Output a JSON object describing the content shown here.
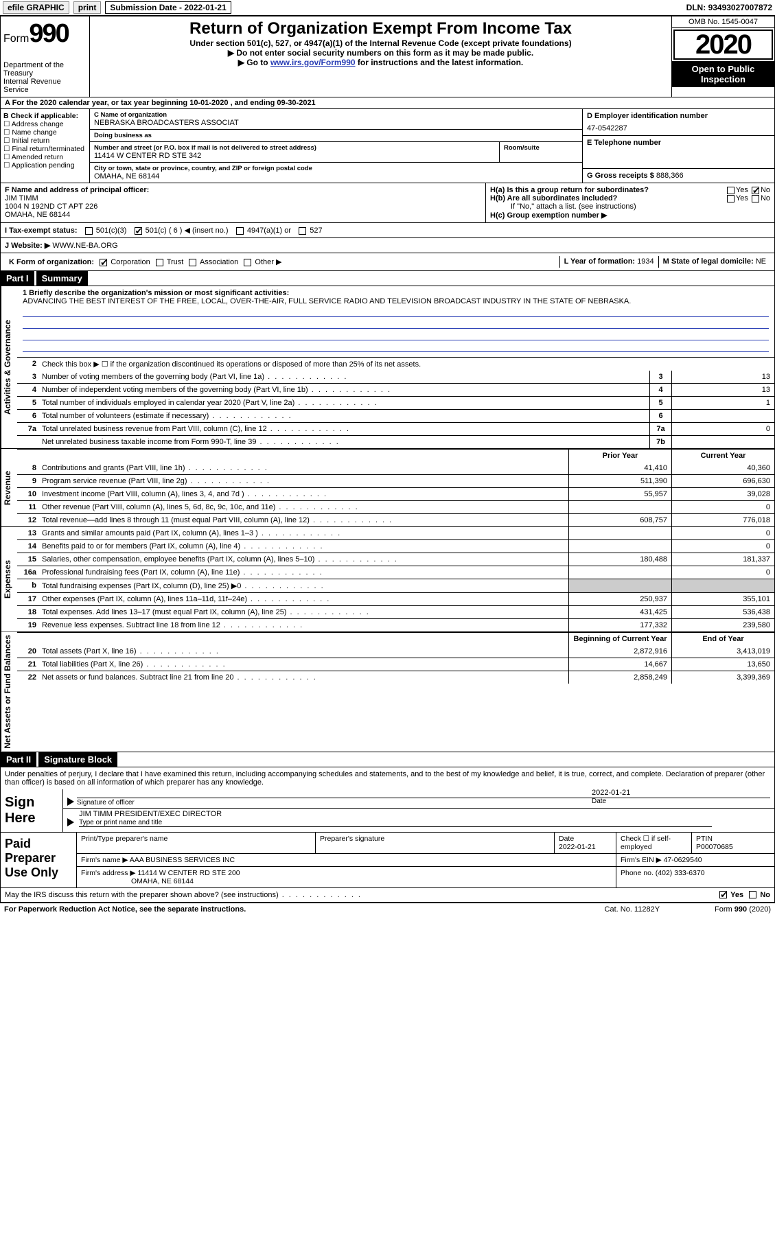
{
  "topbar": {
    "efile": "efile GRAPHIC",
    "print": "print",
    "submission_label": "Submission Date - ",
    "submission_date": "2022-01-21",
    "dln_label": "DLN: ",
    "dln": "93493027007872"
  },
  "header": {
    "form_word": "Form",
    "form_num": "990",
    "dept": "Department of the Treasury",
    "irs": "Internal Revenue Service",
    "title": "Return of Organization Exempt From Income Tax",
    "subtitle": "Under section 501(c), 527, or 4947(a)(1) of the Internal Revenue Code (except private foundations)",
    "note1": "▶ Do not enter social security numbers on this form as it may be made public.",
    "note2_pre": "▶ Go to ",
    "note2_link": "www.irs.gov/Form990",
    "note2_post": " for instructions and the latest information.",
    "omb": "OMB No. 1545-0047",
    "year": "2020",
    "open1": "Open to Public",
    "open2": "Inspection"
  },
  "row_a": {
    "prefix": "A",
    "text": "For the 2020 calendar year, or tax year beginning ",
    "begin": "10-01-2020",
    "mid": "  , and ending ",
    "end": "09-30-2021"
  },
  "section_b": {
    "header": "B Check if applicable:",
    "items": [
      "Address change",
      "Name change",
      "Initial return",
      "Final return/terminated",
      "Amended return",
      "Application pending"
    ]
  },
  "section_c": {
    "name_label": "C Name of organization",
    "name": "NEBRASKA BROADCASTERS ASSOCIAT",
    "dba_label": "Doing business as",
    "dba": "",
    "addr_label": "Number and street (or P.O. box if mail is not delivered to street address)",
    "room_label": "Room/suite",
    "addr": "11414 W CENTER RD STE 342",
    "city_label": "City or town, state or province, country, and ZIP or foreign postal code",
    "city": "OMAHA, NE  68144"
  },
  "section_d": {
    "label": "D Employer identification number",
    "value": "47-0542287"
  },
  "section_e": {
    "label": "E Telephone number",
    "value": ""
  },
  "section_g": {
    "label": "G Gross receipts $ ",
    "value": "888,366"
  },
  "section_f": {
    "label": "F Name and address of principal officer:",
    "name": "JIM TIMM",
    "addr1": "1004 N 192ND CT APT 226",
    "addr2": "OMAHA, NE  68144"
  },
  "section_h": {
    "ha": "H(a)  Is this a group return for subordinates?",
    "ha_yes": "Yes",
    "ha_no": "No",
    "hb": "H(b)  Are all subordinates included?",
    "hb_yes": "Yes",
    "hb_no": "No",
    "hb_note": "If \"No,\" attach a list. (see instructions)",
    "hc": "H(c)  Group exemption number ▶"
  },
  "row_i": {
    "label": "I    Tax-exempt status:",
    "opts": [
      "501(c)(3)",
      "501(c) ( 6 ) ◀ (insert no.)",
      "4947(a)(1) or",
      "527"
    ]
  },
  "row_j": {
    "label": "J   Website: ▶  ",
    "value": "WWW.NE-BA.ORG"
  },
  "row_k": {
    "label": "K Form of organization:",
    "opts": [
      "Corporation",
      "Trust",
      "Association",
      "Other ▶"
    ]
  },
  "row_l": {
    "label": "L Year of formation: ",
    "value": "1934"
  },
  "row_m": {
    "label": "M State of legal domicile: ",
    "value": "NE"
  },
  "part1": {
    "tab": "Part I",
    "title": "Summary",
    "mission_label": "1   Briefly describe the organization's mission or most significant activities:",
    "mission": "ADVANCING THE BEST INTEREST OF THE FREE, LOCAL, OVER-THE-AIR, FULL SERVICE RADIO AND TELEVISION BROADCAST INDUSTRY IN THE STATE OF NEBRASKA.",
    "line2": "Check this box ▶ ☐  if the organization discontinued its operations or disposed of more than 25% of its net assets."
  },
  "vtabs": {
    "gov": "Activities & Governance",
    "rev": "Revenue",
    "exp": "Expenses",
    "net": "Net Assets or Fund Balances"
  },
  "cols": {
    "prior": "Prior Year",
    "current": "Current Year",
    "begin": "Beginning of Current Year",
    "end": "End of Year"
  },
  "gov_lines": [
    {
      "n": "3",
      "d": "Number of voting members of the governing body (Part VI, line 1a)",
      "box": "3",
      "v": "13"
    },
    {
      "n": "4",
      "d": "Number of independent voting members of the governing body (Part VI, line 1b)",
      "box": "4",
      "v": "13"
    },
    {
      "n": "5",
      "d": "Total number of individuals employed in calendar year 2020 (Part V, line 2a)",
      "box": "5",
      "v": "1"
    },
    {
      "n": "6",
      "d": "Total number of volunteers (estimate if necessary)",
      "box": "6",
      "v": ""
    },
    {
      "n": "7a",
      "d": "Total unrelated business revenue from Part VIII, column (C), line 12",
      "box": "7a",
      "v": "0"
    },
    {
      "n": "",
      "d": "Net unrelated business taxable income from Form 990-T, line 39",
      "box": "7b",
      "v": ""
    }
  ],
  "rev_lines": [
    {
      "n": "8",
      "d": "Contributions and grants (Part VIII, line 1h)",
      "p": "41,410",
      "c": "40,360"
    },
    {
      "n": "9",
      "d": "Program service revenue (Part VIII, line 2g)",
      "p": "511,390",
      "c": "696,630"
    },
    {
      "n": "10",
      "d": "Investment income (Part VIII, column (A), lines 3, 4, and 7d )",
      "p": "55,957",
      "c": "39,028"
    },
    {
      "n": "11",
      "d": "Other revenue (Part VIII, column (A), lines 5, 6d, 8c, 9c, 10c, and 11e)",
      "p": "",
      "c": "0"
    },
    {
      "n": "12",
      "d": "Total revenue—add lines 8 through 11 (must equal Part VIII, column (A), line 12)",
      "p": "608,757",
      "c": "776,018"
    }
  ],
  "exp_lines": [
    {
      "n": "13",
      "d": "Grants and similar amounts paid (Part IX, column (A), lines 1–3 )",
      "p": "",
      "c": "0"
    },
    {
      "n": "14",
      "d": "Benefits paid to or for members (Part IX, column (A), line 4)",
      "p": "",
      "c": "0"
    },
    {
      "n": "15",
      "d": "Salaries, other compensation, employee benefits (Part IX, column (A), lines 5–10)",
      "p": "180,488",
      "c": "181,337"
    },
    {
      "n": "16a",
      "d": "Professional fundraising fees (Part IX, column (A), line 11e)",
      "p": "",
      "c": "0"
    },
    {
      "n": "b",
      "d": "Total fundraising expenses (Part IX, column (D), line 25) ▶0",
      "p": "SHADE",
      "c": "SHADE"
    },
    {
      "n": "17",
      "d": "Other expenses (Part IX, column (A), lines 11a–11d, 11f–24e)",
      "p": "250,937",
      "c": "355,101"
    },
    {
      "n": "18",
      "d": "Total expenses. Add lines 13–17 (must equal Part IX, column (A), line 25)",
      "p": "431,425",
      "c": "536,438"
    },
    {
      "n": "19",
      "d": "Revenue less expenses. Subtract line 18 from line 12",
      "p": "177,332",
      "c": "239,580"
    }
  ],
  "net_lines": [
    {
      "n": "20",
      "d": "Total assets (Part X, line 16)",
      "p": "2,872,916",
      "c": "3,413,019"
    },
    {
      "n": "21",
      "d": "Total liabilities (Part X, line 26)",
      "p": "14,667",
      "c": "13,650"
    },
    {
      "n": "22",
      "d": "Net assets or fund balances. Subtract line 21 from line 20",
      "p": "2,858,249",
      "c": "3,399,369"
    }
  ],
  "part2": {
    "tab": "Part II",
    "title": "Signature Block",
    "decl": "Under penalties of perjury, I declare that I have examined this return, including accompanying schedules and statements, and to the best of my knowledge and belief, it is true, correct, and complete. Declaration of preparer (other than officer) is based on all information of which preparer has any knowledge."
  },
  "sign": {
    "label": "Sign Here",
    "sig_label": "Signature of officer",
    "date_label": "Date",
    "date": "2022-01-21",
    "name": "JIM TIMM  PRESIDENT/EXEC DIRECTOR",
    "name_label": "Type or print name and title"
  },
  "paid": {
    "label": "Paid Preparer Use Only",
    "h1": "Print/Type preparer's name",
    "h2": "Preparer's signature",
    "h3": "Date",
    "h3v": "2022-01-21",
    "h4": "Check ☐ if self-employed",
    "h5": "PTIN",
    "h5v": "P00070685",
    "firm_label": "Firm's name    ▶ ",
    "firm": "AAA BUSINESS SERVICES INC",
    "ein_label": "Firm's EIN ▶ ",
    "ein": "47-0629540",
    "addr_label": "Firm's address ▶ ",
    "addr1": "11414 W CENTER RD STE 200",
    "addr2": "OMAHA, NE  68144",
    "phone_label": "Phone no. ",
    "phone": "(402) 333-6370"
  },
  "may": {
    "text": "May the IRS discuss this return with the preparer shown above? (see instructions)",
    "yes": "Yes",
    "no": "No"
  },
  "footer": {
    "left": "For Paperwork Reduction Act Notice, see the separate instructions.",
    "mid": "Cat. No. 11282Y",
    "right": "Form 990 (2020)"
  }
}
